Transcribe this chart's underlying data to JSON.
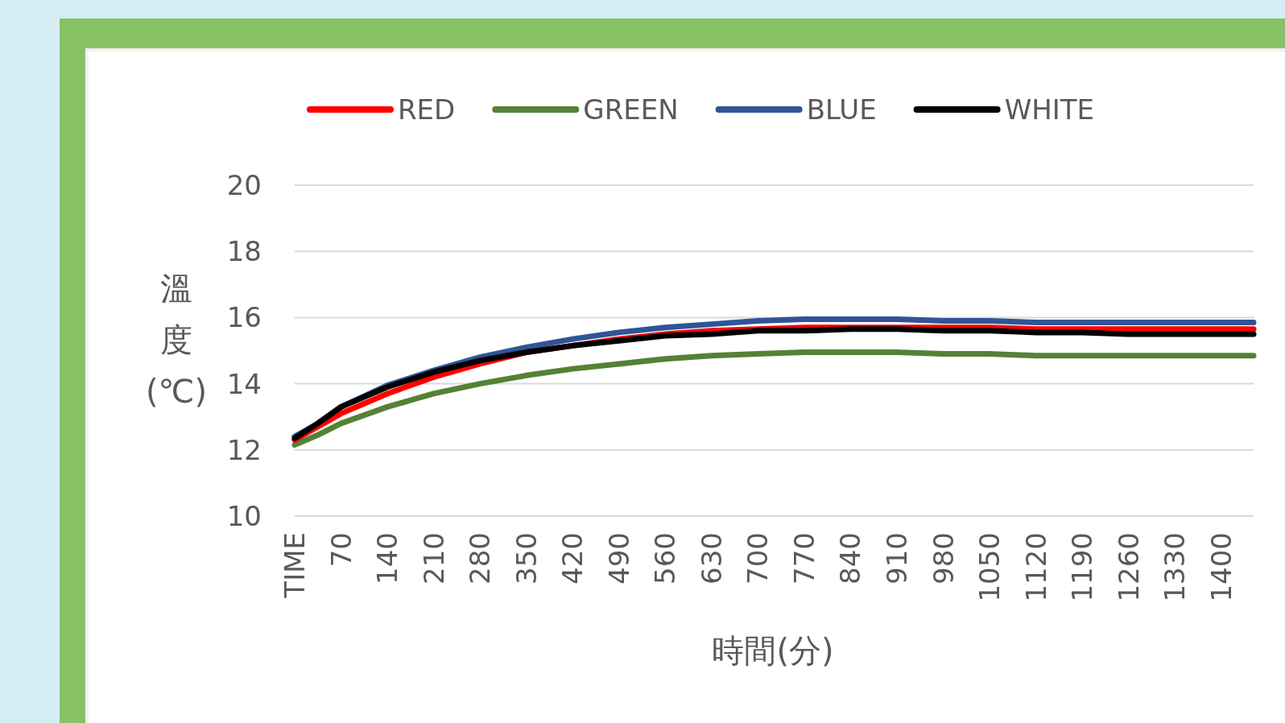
{
  "chart_data": {
    "type": "line",
    "xlabel": "時間(分)",
    "ylabel": "溫度(℃)",
    "legend": "top",
    "grid": "y",
    "line_style": "solid",
    "xlim": [
      0,
      1449
    ],
    "ylim": [
      10,
      20
    ],
    "yticks": [
      10,
      12,
      14,
      16,
      18,
      20
    ],
    "xticks": [
      {
        "value": 0,
        "label": "TIME"
      },
      70,
      140,
      210,
      280,
      350,
      420,
      490,
      560,
      630,
      700,
      770,
      840,
      910,
      980,
      1050,
      1120,
      1190,
      1260,
      1330,
      1400
    ],
    "x": [
      0,
      35,
      70,
      140,
      210,
      280,
      350,
      420,
      490,
      560,
      630,
      700,
      770,
      840,
      910,
      980,
      1050,
      1120,
      1190,
      1260,
      1330,
      1400,
      1449
    ],
    "series": [
      {
        "name": "RED",
        "color": "#ff0000",
        "values": [
          12.3,
          12.7,
          13.1,
          13.7,
          14.2,
          14.6,
          14.95,
          15.15,
          15.35,
          15.5,
          15.6,
          15.65,
          15.7,
          15.7,
          15.7,
          15.7,
          15.7,
          15.65,
          15.65,
          15.65,
          15.65,
          15.65,
          15.65
        ]
      },
      {
        "name": "GREEN",
        "color": "#548235",
        "values": [
          12.15,
          12.45,
          12.8,
          13.3,
          13.7,
          14.0,
          14.25,
          14.45,
          14.6,
          14.75,
          14.85,
          14.9,
          14.95,
          14.95,
          14.95,
          14.9,
          14.9,
          14.85,
          14.85,
          14.85,
          14.85,
          14.85,
          14.85
        ]
      },
      {
        "name": "BLUE",
        "color": "#2f5597",
        "values": [
          12.4,
          12.8,
          13.3,
          13.95,
          14.4,
          14.8,
          15.1,
          15.35,
          15.55,
          15.7,
          15.8,
          15.9,
          15.95,
          15.95,
          15.95,
          15.9,
          15.9,
          15.85,
          15.85,
          15.85,
          15.85,
          15.85,
          15.85
        ]
      },
      {
        "name": "WHITE",
        "color": "#000000",
        "values": [
          12.35,
          12.8,
          13.3,
          13.9,
          14.35,
          14.7,
          14.95,
          15.15,
          15.3,
          15.45,
          15.5,
          15.6,
          15.6,
          15.65,
          15.65,
          15.6,
          15.6,
          15.55,
          15.55,
          15.5,
          15.5,
          15.5,
          15.5
        ]
      }
    ]
  }
}
